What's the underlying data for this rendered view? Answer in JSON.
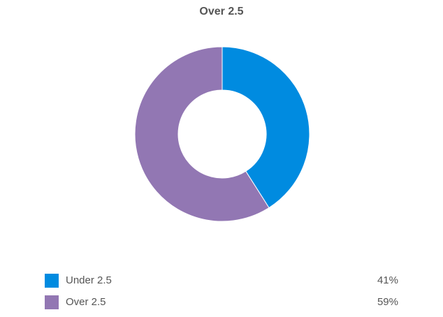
{
  "chart_data": {
    "type": "pie",
    "variant": "donut",
    "title": "Over 2.5",
    "slices": [
      {
        "label": "Under 2.5",
        "value": 41,
        "display": "41%",
        "color": "#008BE0"
      },
      {
        "label": "Over 2.5",
        "value": 59,
        "display": "59%",
        "color": "#9277B3"
      }
    ],
    "legend_position": "bottom"
  }
}
